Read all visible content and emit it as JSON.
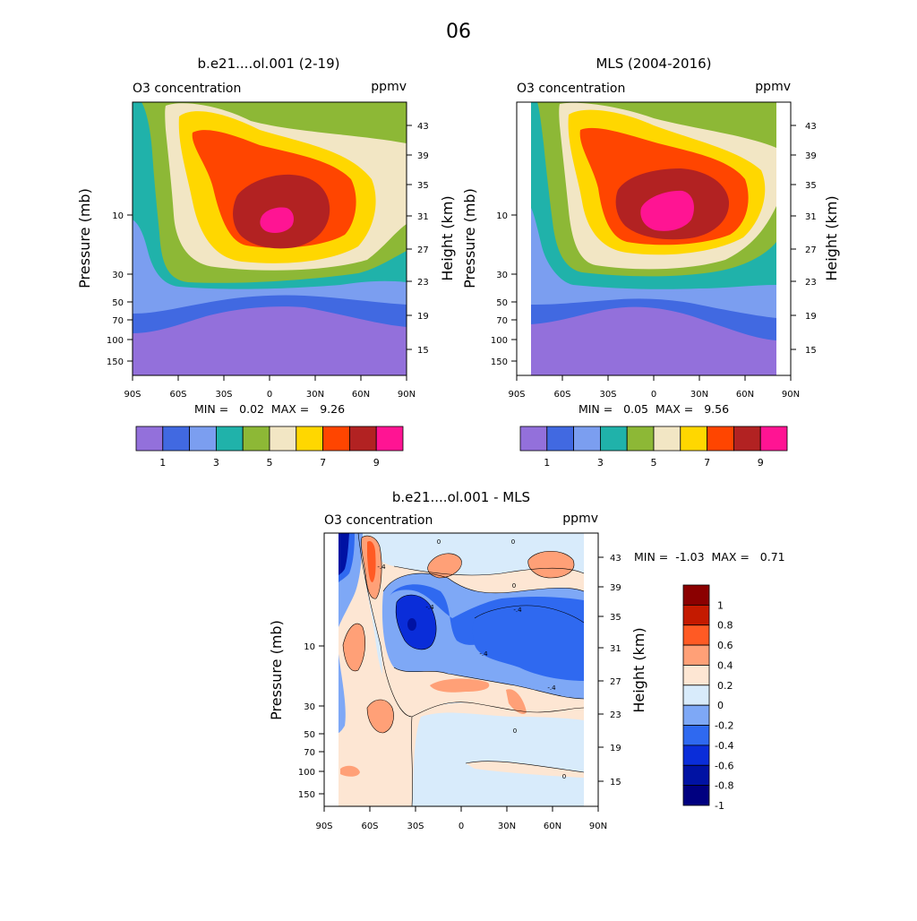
{
  "figure_title": "06",
  "chart_data": [
    {
      "type": "contour",
      "title": "b.e21....ol.001 (2-19)",
      "left_label": "O3 concentration",
      "right_label": "ppmv",
      "ylabel": "Pressure (mb)",
      "ylabel_right": "Height (km)",
      "xlim": [
        -90,
        90
      ],
      "x_ticks": [
        "90S",
        "60S",
        "30S",
        "0",
        "30N",
        "60N",
        "90N"
      ],
      "y_ticks": [
        "10",
        "30",
        "50",
        "70",
        "100",
        "150"
      ],
      "height_ticks": [
        "43",
        "39",
        "35",
        "31",
        "27",
        "23",
        "19",
        "15"
      ],
      "min_max": "MIN =   0.02  MAX =   9.26",
      "min": 0.02,
      "max": 9.26,
      "max_location": {
        "lat": 5,
        "pressure_mb": 10
      }
    },
    {
      "type": "contour",
      "title": "MLS (2004-2016)",
      "left_label": "O3 concentration",
      "right_label": "ppmv",
      "ylabel": "Pressure (mb)",
      "ylabel_right": "Height (km)",
      "xlim": [
        -90,
        90
      ],
      "data_extent_lat": [
        -82,
        82
      ],
      "x_ticks": [
        "90S",
        "60S",
        "30S",
        "0",
        "30N",
        "60N",
        "90N"
      ],
      "y_ticks": [
        "10",
        "30",
        "50",
        "70",
        "100",
        "150"
      ],
      "height_ticks": [
        "43",
        "39",
        "35",
        "31",
        "27",
        "23",
        "19",
        "15"
      ],
      "min_max": "MIN =   0.05  MAX =   9.56",
      "min": 0.05,
      "max": 9.56
    },
    {
      "type": "contour",
      "title": "b.e21....ol.001 - MLS",
      "left_label": "O3 concentration",
      "right_label": "ppmv",
      "ylabel": "Pressure (mb)",
      "ylabel_right": "Height (km)",
      "xlim": [
        -90,
        90
      ],
      "data_extent_lat": [
        -82,
        82
      ],
      "x_ticks": [
        "90S",
        "60S",
        "30S",
        "0",
        "30N",
        "60N",
        "90N"
      ],
      "y_ticks": [
        "10",
        "30",
        "50",
        "70",
        "100",
        "150"
      ],
      "height_ticks": [
        "43",
        "39",
        "35",
        "31",
        "27",
        "23",
        "19",
        "15"
      ],
      "min_max": "MIN =  -1.03  MAX =   0.71",
      "min": -1.03,
      "max": 0.71
    }
  ],
  "colorbar_top": {
    "colors": [
      "#9370DB",
      "#4169E1",
      "#7B9EF0",
      "#20B2AA",
      "#8DB836",
      "#F2E6C4",
      "#FFD700",
      "#FF4500",
      "#B22222",
      "#FF1493"
    ],
    "labels": [
      "1",
      "3",
      "5",
      "7",
      "9"
    ]
  },
  "colorbar_diff": {
    "colors": [
      "#8B0000",
      "#C41A00",
      "#FF5A24",
      "#FFA077",
      "#FDE6D3",
      "#D8EBFB",
      "#7EA8F6",
      "#2F69F0",
      "#0A2DD9",
      "#0012A3",
      "#000080"
    ],
    "labels": [
      "1",
      "0.8",
      "0.6",
      "0.4",
      "0.2",
      "0",
      "-0.2",
      "-0.4",
      "-0.6",
      "-0.8",
      "-1"
    ]
  },
  "contour_zero_label": "0",
  "contour_neg_label": "-.4"
}
